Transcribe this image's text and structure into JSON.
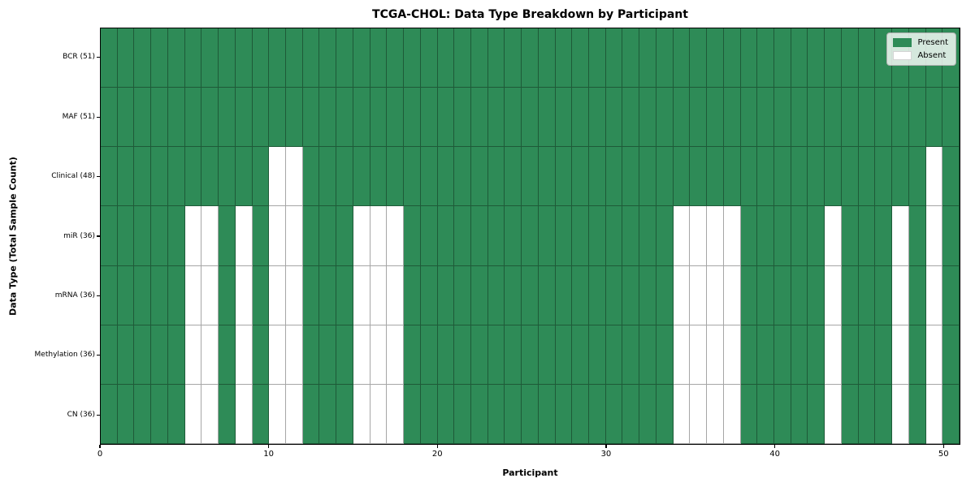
{
  "chart_data": {
    "type": "heatmap",
    "title": "TCGA-CHOL: Data Type Breakdown by Participant",
    "xlabel": "Participant",
    "ylabel": "Data Type (Total Sample Count)",
    "n_participants": 51,
    "x_range": [
      0,
      51
    ],
    "x_ticks": [
      0,
      10,
      20,
      30,
      40,
      50
    ],
    "grid": true,
    "legend": {
      "position": "upper right",
      "items": [
        {
          "label": "Present",
          "color": "#2e8b57"
        },
        {
          "label": "Absent",
          "color": "#ffffff"
        }
      ]
    },
    "rows": [
      {
        "name": "BCR",
        "label": "BCR (51)",
        "present_count": 51,
        "absent_participants": []
      },
      {
        "name": "MAF",
        "label": "MAF (51)",
        "present_count": 51,
        "absent_participants": []
      },
      {
        "name": "Clinical",
        "label": "Clinical (48)",
        "present_count": 48,
        "absent_participants": [
          10,
          11,
          49
        ]
      },
      {
        "name": "miR",
        "label": "miR (36)",
        "present_count": 36,
        "absent_participants": [
          5,
          6,
          8,
          10,
          11,
          15,
          16,
          17,
          34,
          35,
          36,
          37,
          43,
          47,
          49
        ]
      },
      {
        "name": "mRNA",
        "label": "mRNA (36)",
        "present_count": 36,
        "absent_participants": [
          5,
          6,
          8,
          10,
          11,
          15,
          16,
          17,
          34,
          35,
          36,
          37,
          43,
          47,
          49
        ]
      },
      {
        "name": "Methylation",
        "label": "Methylation (36)",
        "present_count": 36,
        "absent_participants": [
          5,
          6,
          8,
          10,
          11,
          15,
          16,
          17,
          34,
          35,
          36,
          37,
          43,
          47,
          49
        ]
      },
      {
        "name": "CN",
        "label": "CN (36)",
        "present_count": 36,
        "absent_participants": [
          5,
          6,
          8,
          10,
          11,
          15,
          16,
          17,
          34,
          35,
          36,
          37,
          43,
          47,
          49
        ]
      }
    ],
    "colors": {
      "present": "#2e8b57",
      "absent": "#ffffff",
      "gridline": "rgba(0,0,0,0.35)",
      "spine": "#000000",
      "legend_background": "rgba(255,255,255,0.8)"
    }
  }
}
